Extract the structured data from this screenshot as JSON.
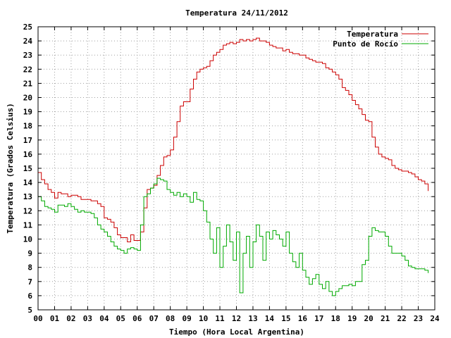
{
  "chart_data": {
    "type": "line",
    "title": "Temperatura 24/11/2012",
    "xlabel": "Tiempo (Hora Local Argentina)",
    "ylabel": "Temperatura (Grados Celsius)",
    "xlim": [
      0,
      24
    ],
    "ylim": [
      5,
      25
    ],
    "xticks": [
      "00",
      "01",
      "02",
      "03",
      "04",
      "05",
      "06",
      "07",
      "08",
      "09",
      "10",
      "11",
      "12",
      "13",
      "14",
      "15",
      "16",
      "17",
      "18",
      "19",
      "20",
      "21",
      "22",
      "23",
      "24"
    ],
    "yticks": [
      5,
      6,
      7,
      8,
      9,
      10,
      11,
      12,
      13,
      14,
      15,
      16,
      17,
      18,
      19,
      20,
      21,
      22,
      23,
      24,
      25
    ],
    "grid": true,
    "legend_position": "top-right",
    "colors": {
      "temperatura": "#cc0000",
      "punto_de_rocio": "#00aa00"
    },
    "series": [
      {
        "name": "Temperatura",
        "color": "#cc0000",
        "x": [
          0,
          0.2,
          0.4,
          0.6,
          0.8,
          1.0,
          1.2,
          1.4,
          1.6,
          1.8,
          2.0,
          2.2,
          2.4,
          2.6,
          2.8,
          3.0,
          3.2,
          3.4,
          3.6,
          3.8,
          4.0,
          4.2,
          4.4,
          4.6,
          4.8,
          5.0,
          5.2,
          5.4,
          5.6,
          5.8,
          6.0,
          6.2,
          6.4,
          6.6,
          6.8,
          7.0,
          7.2,
          7.4,
          7.6,
          7.8,
          8.0,
          8.2,
          8.4,
          8.6,
          8.8,
          9.0,
          9.2,
          9.4,
          9.6,
          9.8,
          10.0,
          10.2,
          10.4,
          10.6,
          10.8,
          11.0,
          11.2,
          11.4,
          11.6,
          11.8,
          12.0,
          12.2,
          12.4,
          12.6,
          12.8,
          13.0,
          13.2,
          13.4,
          13.6,
          13.8,
          14.0,
          14.2,
          14.4,
          14.6,
          14.8,
          15.0,
          15.2,
          15.4,
          15.6,
          15.8,
          16.0,
          16.2,
          16.4,
          16.6,
          16.8,
          17.0,
          17.2,
          17.4,
          17.6,
          17.8,
          18.0,
          18.2,
          18.4,
          18.6,
          18.8,
          19.0,
          19.2,
          19.4,
          19.6,
          19.8,
          20.0,
          20.2,
          20.4,
          20.6,
          20.8,
          21.0,
          21.2,
          21.4,
          21.6,
          21.8,
          22.0,
          22.2,
          22.4,
          22.6,
          22.8,
          23.0,
          23.2,
          23.4,
          23.6
        ],
        "values": [
          14.7,
          14.2,
          13.9,
          13.5,
          13.3,
          12.9,
          13.3,
          13.2,
          13.2,
          13.0,
          13.1,
          13.1,
          13.0,
          12.8,
          12.8,
          12.8,
          12.7,
          12.7,
          12.5,
          12.3,
          11.5,
          11.4,
          11.2,
          10.8,
          10.3,
          10.1,
          10.1,
          9.8,
          10.3,
          9.9,
          9.9,
          10.5,
          12.2,
          13.5,
          13.6,
          13.8,
          14.5,
          15.2,
          15.8,
          15.9,
          16.3,
          17.2,
          18.3,
          19.4,
          19.7,
          19.7,
          20.6,
          21.3,
          21.8,
          22.0,
          22.1,
          22.2,
          22.6,
          23.0,
          23.2,
          23.4,
          23.7,
          23.8,
          23.9,
          23.8,
          23.9,
          24.1,
          24.0,
          24.1,
          24.0,
          24.1,
          24.2,
          24.0,
          24.0,
          23.9,
          23.7,
          23.6,
          23.5,
          23.5,
          23.3,
          23.4,
          23.2,
          23.1,
          23.1,
          23.0,
          23.0,
          22.8,
          22.7,
          22.6,
          22.5,
          22.5,
          22.4,
          22.1,
          22.0,
          21.8,
          21.6,
          21.3,
          20.7,
          20.5,
          20.2,
          19.8,
          19.5,
          19.2,
          18.8,
          18.4,
          18.3,
          17.2,
          16.5,
          16.0,
          15.8,
          15.7,
          15.6,
          15.2,
          15.0,
          14.9,
          14.8,
          14.8,
          14.7,
          14.6,
          14.4,
          14.2,
          14.1,
          13.9,
          13.4
        ]
      },
      {
        "name": "Punto de Rocío",
        "color": "#00aa00",
        "x": [
          0,
          0.2,
          0.4,
          0.6,
          0.8,
          1.0,
          1.2,
          1.4,
          1.6,
          1.8,
          2.0,
          2.2,
          2.4,
          2.6,
          2.8,
          3.0,
          3.2,
          3.4,
          3.6,
          3.8,
          4.0,
          4.2,
          4.4,
          4.6,
          4.8,
          5.0,
          5.2,
          5.4,
          5.6,
          5.8,
          6.0,
          6.2,
          6.4,
          6.6,
          6.8,
          7.0,
          7.2,
          7.4,
          7.6,
          7.8,
          8.0,
          8.2,
          8.4,
          8.6,
          8.8,
          9.0,
          9.2,
          9.4,
          9.6,
          9.8,
          10.0,
          10.2,
          10.4,
          10.6,
          10.8,
          11.0,
          11.2,
          11.4,
          11.6,
          11.8,
          12.0,
          12.2,
          12.4,
          12.6,
          12.8,
          13.0,
          13.2,
          13.4,
          13.6,
          13.8,
          14.0,
          14.2,
          14.4,
          14.6,
          14.8,
          15.0,
          15.2,
          15.4,
          15.6,
          15.8,
          16.0,
          16.2,
          16.4,
          16.6,
          16.8,
          17.0,
          17.2,
          17.4,
          17.6,
          17.8,
          18.0,
          18.2,
          18.4,
          18.6,
          18.8,
          19.0,
          19.2,
          19.4,
          19.6,
          19.8,
          20.0,
          20.2,
          20.4,
          20.6,
          20.8,
          21.0,
          21.2,
          21.4,
          21.6,
          21.8,
          22.0,
          22.2,
          22.4,
          22.6,
          22.8,
          23.0,
          23.2,
          23.4,
          23.6
        ],
        "values": [
          13.0,
          12.7,
          12.3,
          12.2,
          12.1,
          11.9,
          12.4,
          12.4,
          12.3,
          12.5,
          12.3,
          12.1,
          11.9,
          12.0,
          11.9,
          11.9,
          11.8,
          11.5,
          11.0,
          10.7,
          10.5,
          10.2,
          9.8,
          9.5,
          9.3,
          9.2,
          9.0,
          9.3,
          9.4,
          9.3,
          9.2,
          11.0,
          13.0,
          13.2,
          13.6,
          13.9,
          14.3,
          14.2,
          14.1,
          13.5,
          13.3,
          13.1,
          13.3,
          13.0,
          13.2,
          13.0,
          12.6,
          13.3,
          12.8,
          12.7,
          12.0,
          11.2,
          10.0,
          9.0,
          10.8,
          8.0,
          9.5,
          11.0,
          9.8,
          8.5,
          10.5,
          6.2,
          9.0,
          10.2,
          8.0,
          9.8,
          11.0,
          10.2,
          8.5,
          10.5,
          10.0,
          10.6,
          10.3,
          10.0,
          9.5,
          10.5,
          9.0,
          8.4,
          8.0,
          9.0,
          7.8,
          7.3,
          6.8,
          7.2,
          7.5,
          6.8,
          6.5,
          7.0,
          6.3,
          6.0,
          6.3,
          6.5,
          6.7,
          6.7,
          6.8,
          6.7,
          7.0,
          7.0,
          8.2,
          8.5,
          10.2,
          10.8,
          10.6,
          10.5,
          10.5,
          10.2,
          9.5,
          9.0,
          9.0,
          9.0,
          8.8,
          8.5,
          8.1,
          8.0,
          7.9,
          7.9,
          7.9,
          7.8,
          7.6
        ]
      }
    ]
  }
}
